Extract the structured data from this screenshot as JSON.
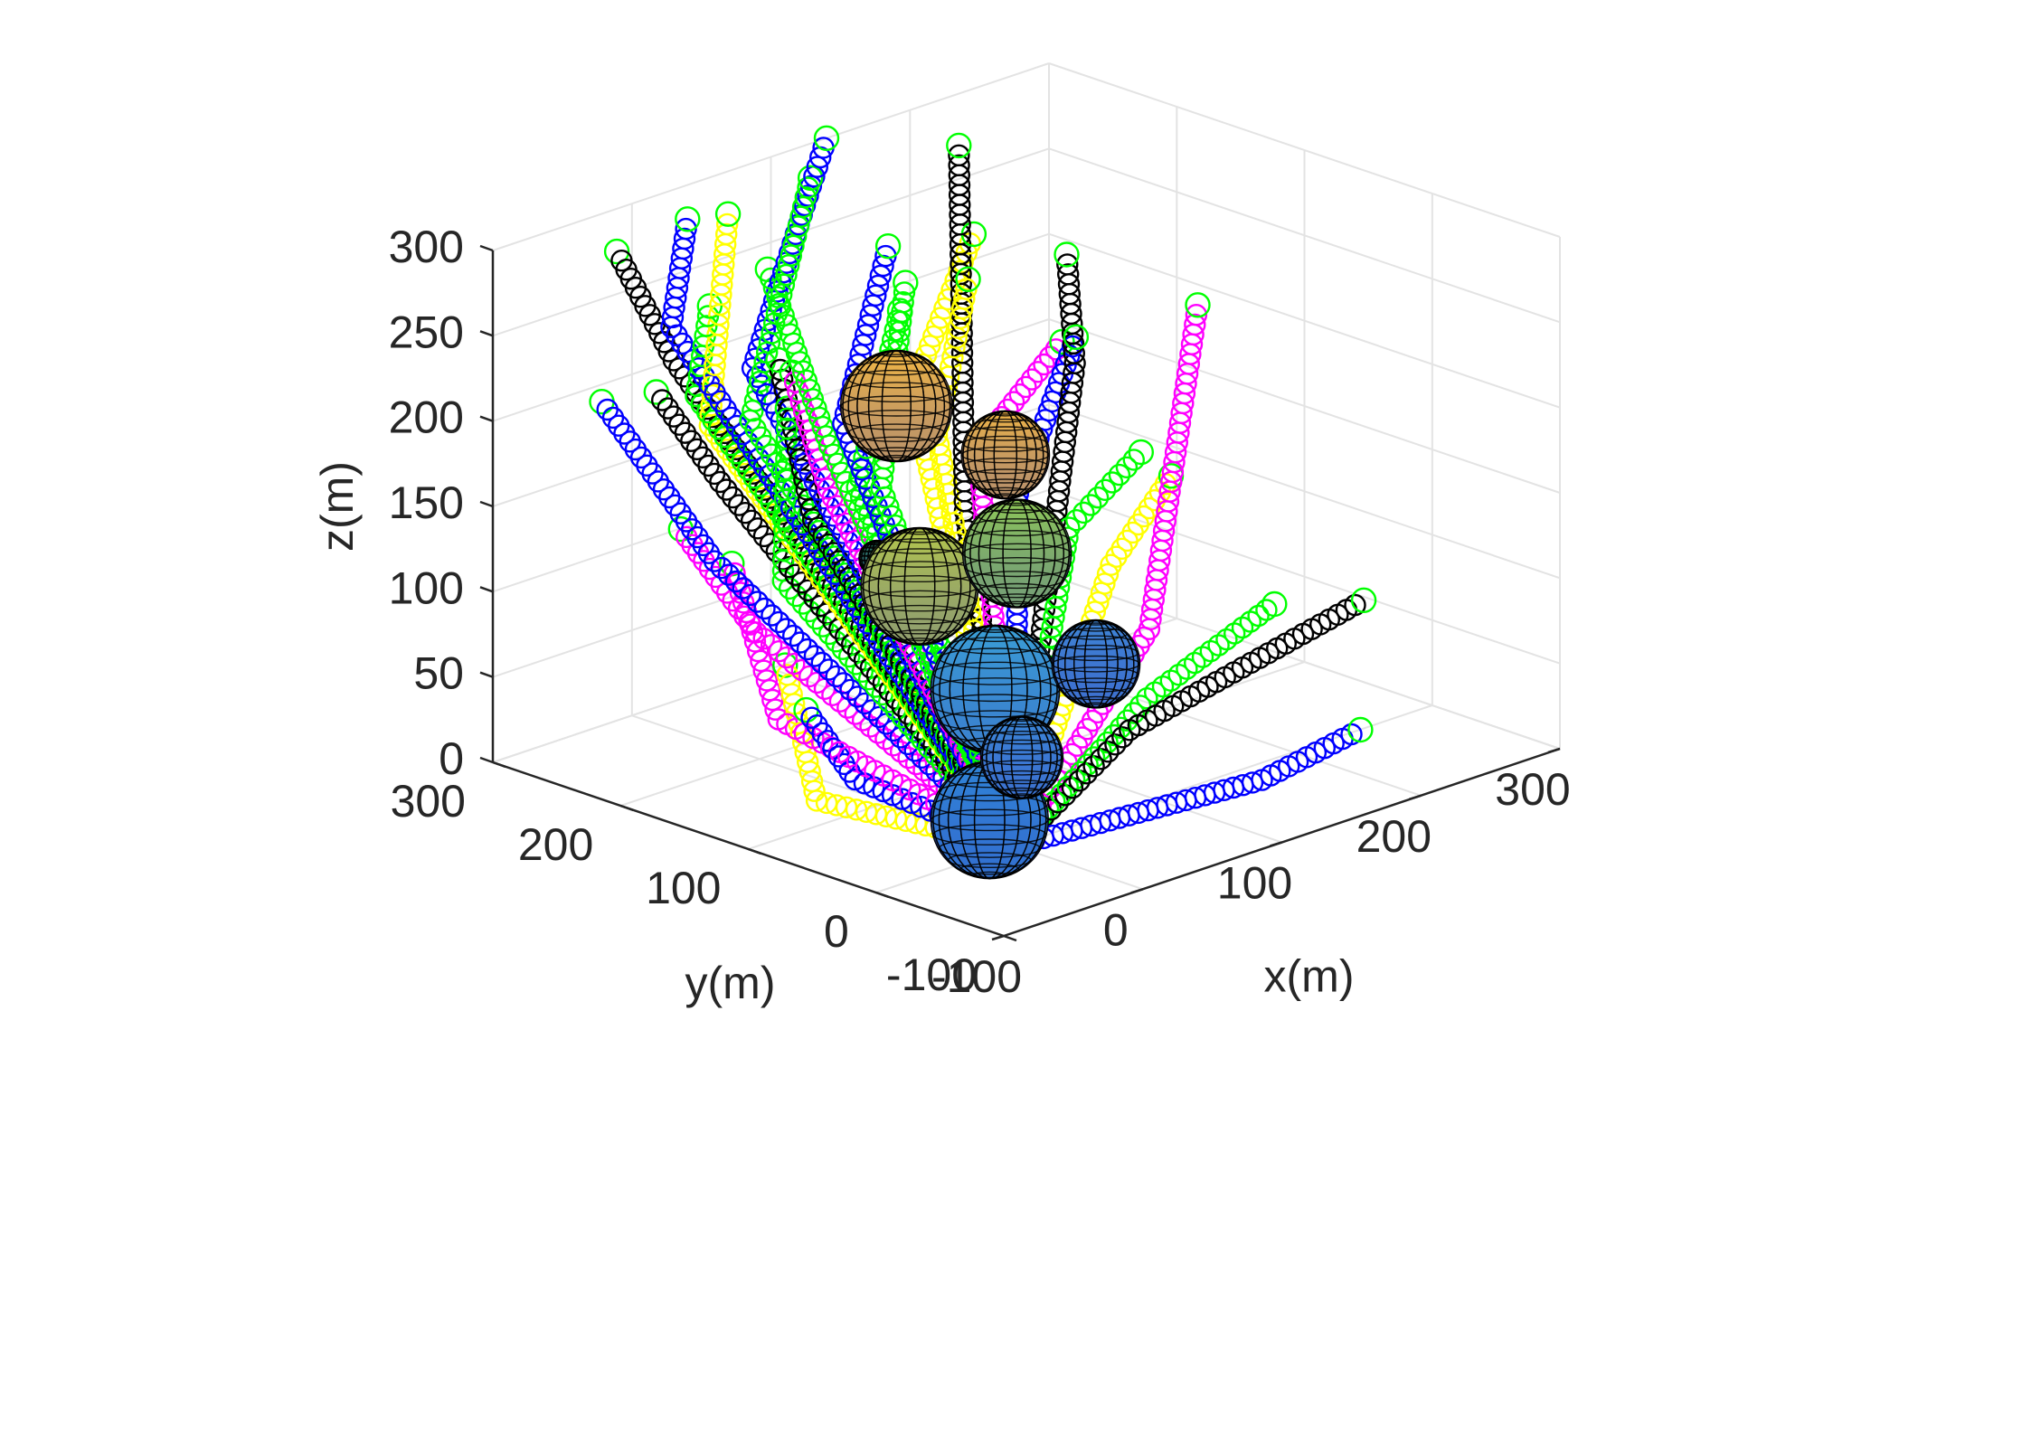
{
  "chart_data": {
    "type": "scatter3d",
    "title": "",
    "xlabel": "x(m)",
    "ylabel": "y(m)",
    "zlabel": "z(m)",
    "xlim": [
      -100,
      300
    ],
    "ylim": [
      -100,
      300
    ],
    "zlim": [
      0,
      300
    ],
    "xticks": [
      "-100",
      "0",
      "100",
      "200",
      "300"
    ],
    "yticks": [
      "-100",
      "0",
      "100",
      "200",
      "300"
    ],
    "zticks": [
      "0",
      "50",
      "100",
      "150",
      "200",
      "250",
      "300"
    ],
    "grid": true,
    "colors": {
      "blue": "#0000ff",
      "black": "#000000",
      "green": "#00ff00",
      "magenta": "#ff00ff",
      "yellow": "#ffff00",
      "start_marker": "#ff0000",
      "end_marker": "#00ff00"
    },
    "start_point": [
      0,
      0,
      0
    ],
    "paths": [
      {
        "color": "blue",
        "points": [
          [
            0,
            0,
            0
          ],
          [
            150,
            -30,
            5
          ],
          [
            230,
            -20,
            10
          ]
        ]
      },
      {
        "color": "black",
        "points": [
          [
            0,
            0,
            0
          ],
          [
            110,
            30,
            30
          ],
          [
            260,
            10,
            70
          ]
        ]
      },
      {
        "color": "green",
        "points": [
          [
            0,
            0,
            0
          ],
          [
            150,
            60,
            30
          ],
          [
            260,
            80,
            50
          ]
        ]
      },
      {
        "color": "magenta",
        "points": [
          [
            0,
            0,
            0
          ],
          [
            170,
            80,
            60
          ],
          [
            260,
            140,
            210
          ]
        ]
      },
      {
        "color": "yellow",
        "points": [
          [
            0,
            0,
            0
          ],
          [
            170,
            110,
            90
          ],
          [
            250,
            150,
            110
          ]
        ]
      },
      {
        "color": "green",
        "points": [
          [
            0,
            0,
            0
          ],
          [
            140,
            110,
            120
          ],
          [
            210,
            130,
            140
          ]
        ]
      },
      {
        "color": "blue",
        "points": [
          [
            0,
            0,
            0
          ],
          [
            140,
            150,
            130
          ],
          [
            200,
            170,
            200
          ]
        ]
      },
      {
        "color": "black",
        "points": [
          [
            0,
            0,
            0
          ],
          [
            190,
            160,
            190
          ],
          [
            230,
            210,
            230
          ]
        ]
      },
      {
        "color": "black",
        "points": [
          [
            0,
            0,
            0
          ],
          [
            120,
            170,
            120
          ],
          [
            180,
            240,
            300
          ]
        ]
      },
      {
        "color": "magenta",
        "points": [
          [
            0,
            0,
            0
          ],
          [
            120,
            160,
            160
          ],
          [
            190,
            170,
            200
          ]
        ]
      },
      {
        "color": "yellow",
        "points": [
          [
            0,
            0,
            0
          ],
          [
            100,
            170,
            170
          ],
          [
            150,
            200,
            240
          ]
        ]
      },
      {
        "color": "green",
        "points": [
          [
            0,
            0,
            0
          ],
          [
            70,
            200,
            140
          ],
          [
            110,
            210,
            230
          ]
        ]
      },
      {
        "color": "blue",
        "points": [
          [
            0,
            0,
            0
          ],
          [
            60,
            200,
            180
          ],
          [
            120,
            230,
            260
          ]
        ]
      },
      {
        "color": "green",
        "points": [
          [
            0,
            0,
            0
          ],
          [
            60,
            170,
            150
          ],
          [
            160,
            260,
            220
          ]
        ]
      },
      {
        "color": "yellow",
        "points": [
          [
            0,
            0,
            0
          ],
          [
            100,
            190,
            190
          ],
          [
            200,
            250,
            240
          ]
        ]
      },
      {
        "color": "green",
        "points": [
          [
            0,
            0,
            0
          ],
          [
            50,
            200,
            170
          ],
          [
            70,
            270,
            250
          ]
        ]
      },
      {
        "color": "magenta",
        "points": [
          [
            0,
            0,
            0
          ],
          [
            40,
            190,
            150
          ],
          [
            60,
            240,
            200
          ]
        ]
      },
      {
        "color": "black",
        "points": [
          [
            0,
            0,
            0
          ],
          [
            20,
            180,
            140
          ],
          [
            50,
            240,
            210
          ]
        ]
      },
      {
        "color": "blue",
        "points": [
          [
            0,
            0,
            0
          ],
          [
            50,
            260,
            200
          ],
          [
            140,
            300,
            300
          ]
        ]
      },
      {
        "color": "green",
        "points": [
          [
            0,
            0,
            0
          ],
          [
            30,
            240,
            180
          ],
          [
            110,
            280,
            290
          ]
        ]
      },
      {
        "color": "yellow",
        "points": [
          [
            0,
            0,
            0
          ],
          [
            10,
            250,
            180
          ],
          [
            60,
            290,
            280
          ]
        ]
      },
      {
        "color": "black",
        "points": [
          [
            0,
            0,
            0
          ],
          [
            30,
            300,
            200
          ],
          [
            -20,
            290,
            280
          ]
        ]
      },
      {
        "color": "green",
        "points": [
          [
            0,
            0,
            0
          ],
          [
            0,
            250,
            200
          ],
          [
            10,
            250,
            250
          ]
        ]
      },
      {
        "color": "blue",
        "points": [
          [
            0,
            0,
            0
          ],
          [
            10,
            280,
            230
          ],
          [
            40,
            300,
            280
          ]
        ]
      },
      {
        "color": "magenta",
        "points": [
          [
            0,
            0,
            0
          ],
          [
            -30,
            170,
            90
          ],
          [
            -20,
            240,
            130
          ]
        ]
      },
      {
        "color": "blue",
        "points": [
          [
            0,
            0,
            0
          ],
          [
            -60,
            170,
            140
          ],
          [
            -40,
            280,
            200
          ]
        ]
      },
      {
        "color": "magenta",
        "points": [
          [
            0,
            0,
            0
          ],
          [
            -60,
            120,
            60
          ],
          [
            -20,
            200,
            120
          ]
        ]
      },
      {
        "color": "yellow",
        "points": [
          [
            0,
            0,
            0
          ],
          [
            -60,
            90,
            20
          ],
          [
            0,
            180,
            60
          ]
        ]
      },
      {
        "color": "blue",
        "points": [
          [
            0,
            0,
            0
          ],
          [
            -60,
            60,
            40
          ],
          [
            -40,
            120,
            60
          ]
        ]
      },
      {
        "color": "green",
        "points": [
          [
            0,
            0,
            0
          ],
          [
            -20,
            160,
            120
          ],
          [
            20,
            200,
            200
          ]
        ]
      },
      {
        "color": "black",
        "points": [
          [
            0,
            0,
            0
          ],
          [
            -10,
            220,
            160
          ],
          [
            -10,
            270,
            200
          ]
        ]
      }
    ],
    "spheres": [
      {
        "center": [
          80,
          180,
          190
        ],
        "radius": 38,
        "color": "#f5b942"
      },
      {
        "center": [
          140,
          160,
          150
        ],
        "radius": 30,
        "color": "#f0b545"
      },
      {
        "center": [
          60,
          140,
          100
        ],
        "radius": 40,
        "color": "#b6c94a"
      },
      {
        "center": [
          130,
          140,
          100
        ],
        "radius": 37,
        "color": "#8fc956"
      },
      {
        "center": [
          50,
          70,
          60
        ],
        "radius": 44,
        "color": "#3a9fd6"
      },
      {
        "center": [
          20,
          130,
          130
        ],
        "radius": 12,
        "color": "#2a7a5a"
      },
      {
        "center": [
          150,
          100,
          40
        ],
        "radius": 30,
        "color": "#3e86d6"
      },
      {
        "center": [
          60,
          60,
          20
        ],
        "radius": 28,
        "color": "#3b88d8"
      },
      {
        "center": [
          0,
          20,
          10
        ],
        "radius": 40,
        "color": "#2f86d8"
      }
    ]
  }
}
